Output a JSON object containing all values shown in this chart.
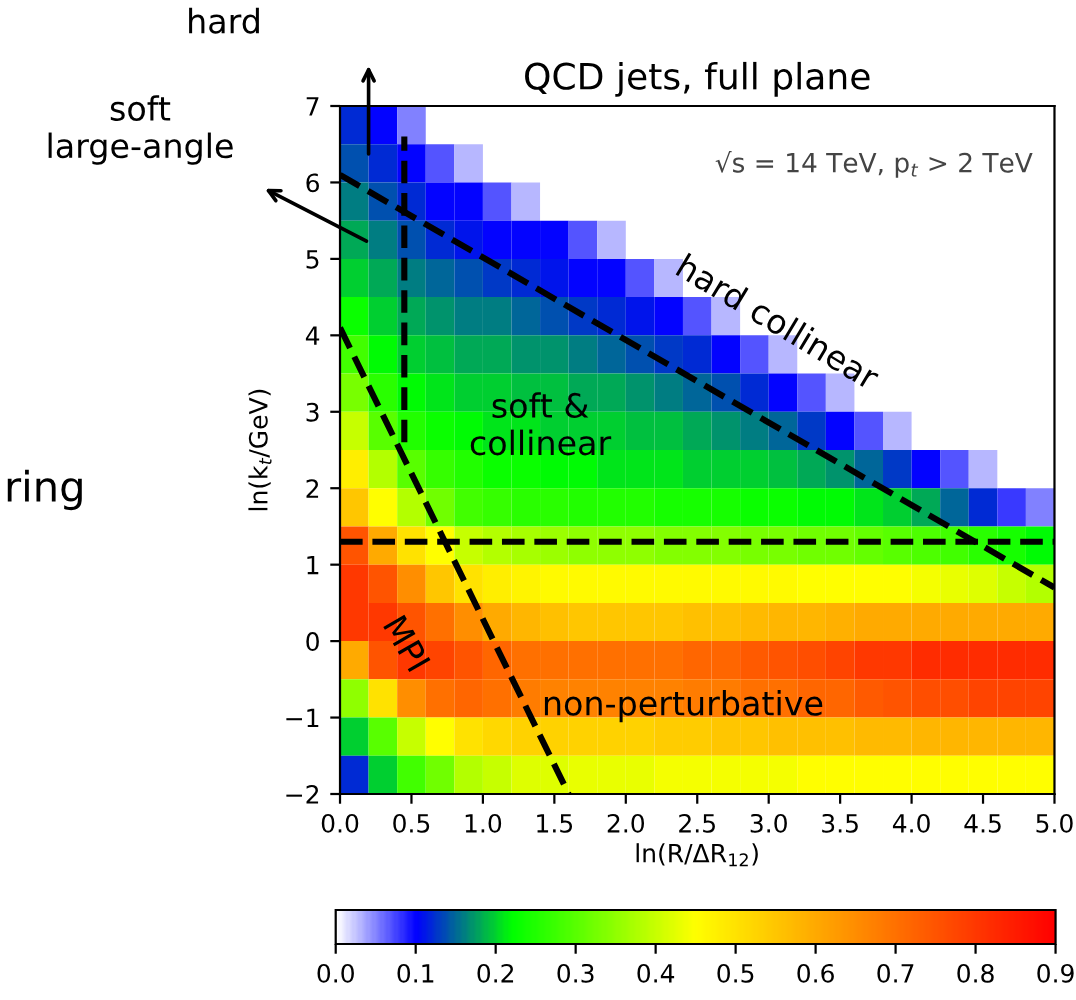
{
  "chart_data": {
    "type": "heatmap",
    "title": "QCD jets, full plane",
    "xlabel": "ln(R/ΔR$_{12}$)",
    "ylabel": "ln(k$_{t}$/GeV)",
    "x": [
      0.1,
      0.3,
      0.5,
      0.7,
      0.9,
      1.1,
      1.3,
      1.5,
      1.7,
      1.9,
      2.1,
      2.3,
      2.5,
      2.7,
      2.9,
      3.1,
      3.3,
      3.5,
      3.7,
      3.9,
      4.1,
      4.3,
      4.5,
      4.7,
      4.9
    ],
    "y": [
      6.75,
      6.25,
      5.75,
      5.25,
      4.75,
      4.25,
      3.75,
      3.25,
      2.75,
      2.25,
      1.75,
      1.25,
      0.75,
      0.25,
      -0.25,
      -0.75,
      -1.25,
      -1.75
    ],
    "cells": [
      [
        0.12,
        0.1,
        0.05,
        null,
        null,
        null,
        null,
        null,
        null,
        null,
        null,
        null,
        null,
        null,
        null,
        null,
        null,
        null,
        null,
        null,
        null,
        null,
        null,
        null,
        null
      ],
      [
        0.14,
        0.12,
        0.1,
        0.07,
        0.03,
        null,
        null,
        null,
        null,
        null,
        null,
        null,
        null,
        null,
        null,
        null,
        null,
        null,
        null,
        null,
        null,
        null,
        null,
        null,
        null
      ],
      [
        0.16,
        0.14,
        0.12,
        0.1,
        0.1,
        0.07,
        0.03,
        null,
        null,
        null,
        null,
        null,
        null,
        null,
        null,
        null,
        null,
        null,
        null,
        null,
        null,
        null,
        null,
        null,
        null
      ],
      [
        0.18,
        0.16,
        0.14,
        0.12,
        0.11,
        0.1,
        0.1,
        0.1,
        0.07,
        0.03,
        null,
        null,
        null,
        null,
        null,
        null,
        null,
        null,
        null,
        null,
        null,
        null,
        null,
        null,
        null
      ],
      [
        0.2,
        0.18,
        0.16,
        0.15,
        0.14,
        0.13,
        0.12,
        0.11,
        0.1,
        0.1,
        0.07,
        0.03,
        null,
        null,
        null,
        null,
        null,
        null,
        null,
        null,
        null,
        null,
        null,
        null,
        null
      ],
      [
        0.23,
        0.2,
        0.18,
        0.17,
        0.16,
        0.16,
        0.15,
        0.14,
        0.13,
        0.12,
        0.11,
        0.1,
        0.07,
        0.03,
        null,
        null,
        null,
        null,
        null,
        null,
        null,
        null,
        null,
        null,
        null
      ],
      [
        0.28,
        0.22,
        0.2,
        0.19,
        0.18,
        0.18,
        0.17,
        0.17,
        0.16,
        0.15,
        0.14,
        0.13,
        0.12,
        0.1,
        0.07,
        0.03,
        null,
        null,
        null,
        null,
        null,
        null,
        null,
        null,
        null
      ],
      [
        0.33,
        0.26,
        0.22,
        0.21,
        0.2,
        0.2,
        0.19,
        0.19,
        0.18,
        0.18,
        0.17,
        0.16,
        0.15,
        0.14,
        0.12,
        0.1,
        0.07,
        0.03,
        null,
        null,
        null,
        null,
        null,
        null,
        null
      ],
      [
        0.4,
        0.3,
        0.25,
        0.23,
        0.22,
        0.21,
        0.21,
        0.2,
        0.2,
        0.2,
        0.19,
        0.19,
        0.18,
        0.17,
        0.16,
        0.15,
        0.13,
        0.1,
        0.07,
        0.03,
        null,
        null,
        null,
        null,
        null
      ],
      [
        0.48,
        0.38,
        0.3,
        0.27,
        0.25,
        0.23,
        0.23,
        0.22,
        0.22,
        0.21,
        0.21,
        0.21,
        0.2,
        0.2,
        0.2,
        0.19,
        0.18,
        0.17,
        0.15,
        0.13,
        0.1,
        0.07,
        0.03,
        null,
        null
      ],
      [
        0.55,
        0.45,
        0.38,
        0.32,
        0.28,
        0.27,
        0.26,
        0.26,
        0.25,
        0.25,
        0.25,
        0.24,
        0.24,
        0.24,
        0.23,
        0.23,
        0.22,
        0.22,
        0.21,
        0.2,
        0.18,
        0.15,
        0.12,
        0.08,
        0.05
      ],
      [
        0.75,
        0.6,
        0.5,
        0.45,
        0.4,
        0.38,
        0.37,
        0.36,
        0.35,
        0.35,
        0.35,
        0.34,
        0.34,
        0.34,
        0.33,
        0.33,
        0.32,
        0.32,
        0.31,
        0.3,
        0.29,
        0.28,
        0.26,
        0.24,
        0.22
      ],
      [
        0.8,
        0.75,
        0.65,
        0.55,
        0.5,
        0.48,
        0.47,
        0.46,
        0.46,
        0.46,
        0.46,
        0.46,
        0.46,
        0.46,
        0.46,
        0.46,
        0.45,
        0.45,
        0.45,
        0.45,
        0.44,
        0.43,
        0.42,
        0.4,
        0.38
      ],
      [
        0.8,
        0.8,
        0.75,
        0.7,
        0.65,
        0.6,
        0.58,
        0.56,
        0.55,
        0.55,
        0.55,
        0.55,
        0.56,
        0.56,
        0.57,
        0.58,
        0.58,
        0.59,
        0.6,
        0.6,
        0.6,
        0.6,
        0.6,
        0.6,
        0.6
      ],
      [
        0.6,
        0.75,
        0.8,
        0.78,
        0.75,
        0.72,
        0.7,
        0.7,
        0.7,
        0.7,
        0.7,
        0.7,
        0.72,
        0.72,
        0.74,
        0.75,
        0.76,
        0.78,
        0.8,
        0.8,
        0.82,
        0.82,
        0.82,
        0.82,
        0.82
      ],
      [
        0.35,
        0.5,
        0.65,
        0.7,
        0.72,
        0.7,
        0.68,
        0.67,
        0.67,
        0.67,
        0.67,
        0.67,
        0.68,
        0.68,
        0.7,
        0.7,
        0.72,
        0.72,
        0.74,
        0.75,
        0.76,
        0.76,
        0.78,
        0.78,
        0.78
      ],
      [
        0.2,
        0.3,
        0.4,
        0.45,
        0.5,
        0.52,
        0.53,
        0.53,
        0.53,
        0.53,
        0.53,
        0.54,
        0.54,
        0.55,
        0.55,
        0.56,
        0.56,
        0.56,
        0.57,
        0.57,
        0.58,
        0.58,
        0.58,
        0.58,
        0.58
      ],
      [
        0.12,
        0.2,
        0.28,
        0.32,
        0.38,
        0.4,
        0.42,
        0.42,
        0.43,
        0.43,
        0.43,
        0.44,
        0.44,
        0.44,
        0.44,
        0.44,
        0.45,
        0.45,
        0.45,
        0.45,
        0.45,
        0.45,
        0.45,
        0.45,
        0.45
      ]
    ],
    "clim": [
      0,
      0.9
    ],
    "cticks": [
      {
        "value": 0,
        "label": "0.0"
      },
      0.1,
      0.2,
      0.3,
      0.4,
      0.5,
      0.6,
      0.7,
      0.8,
      0.9
    ],
    "xlim": [
      0,
      5
    ],
    "ylim": [
      -2,
      7
    ],
    "xticks": [
      {
        "value": 0,
        "label": "0.0"
      },
      0.5,
      {
        "value": 1,
        "label": "1.0"
      },
      1.5,
      {
        "value": 2,
        "label": "2.0"
      },
      2.5,
      {
        "value": 3,
        "label": "3.0"
      },
      3.5,
      {
        "value": 4,
        "label": "4.0"
      },
      4.5,
      {
        "value": 5,
        "label": "5.0"
      }
    ],
    "yticks": [
      -2,
      -1,
      0,
      1,
      2,
      3,
      4,
      5,
      6,
      7
    ],
    "series": [
      {
        "type": "line",
        "color": "#000000",
        "line_style": "dashed",
        "x": [
          0,
          5
        ],
        "values": [
          6.1,
          0.7
        ]
      },
      {
        "type": "line",
        "color": "#000000",
        "line_style": "dashed",
        "x": [
          0,
          1.6
        ],
        "values": [
          4.1,
          -2
        ]
      },
      {
        "type": "line",
        "color": "#000000",
        "line_style": "dashed",
        "x": [
          0.45,
          0.45
        ],
        "values": [
          2.6,
          6.6
        ]
      }
    ],
    "ref_lines": [
      {
        "axis": "y",
        "value": 1.3,
        "color": "#000000",
        "line_style": "dashed"
      }
    ],
    "grid": false,
    "annotations": [
      "√s = 14 TeV, p$_{t}$ > 2 TeV",
      "hard",
      "soft\nlarge-angle",
      "ring",
      "hard collinear",
      "soft &\ncollinear",
      "MPI",
      "non-perturbative"
    ]
  }
}
